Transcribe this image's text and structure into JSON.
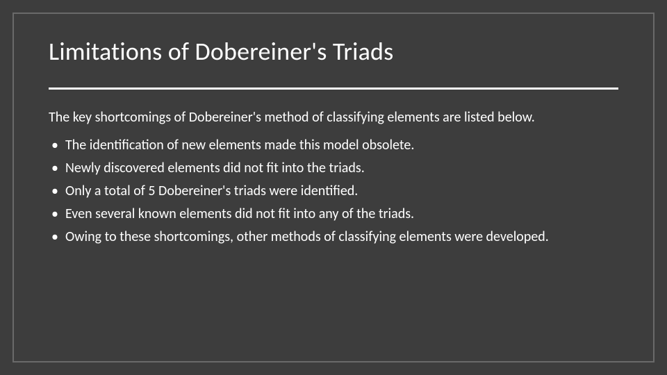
{
  "slide": {
    "background_color": "#3d3d3d",
    "border_color": "#6a6a6a",
    "text_color": "#ffffff",
    "divider_color": "#ffffff",
    "title_fontsize": 36,
    "body_fontsize": 20,
    "title": "Limitations of Dobereiner's Triads",
    "intro": "The key shortcomings of Dobereiner's method of classifying elements are listed below.",
    "bullets": [
      "The identification of new elements made this model obsolete.",
      "Newly discovered elements did not fit into the triads.",
      "Only a total of 5 Dobereiner's triads were identified.",
      "Even several known elements did not fit into any of the triads.",
      "Owing to these shortcomings, other methods of classifying elements were developed."
    ]
  }
}
